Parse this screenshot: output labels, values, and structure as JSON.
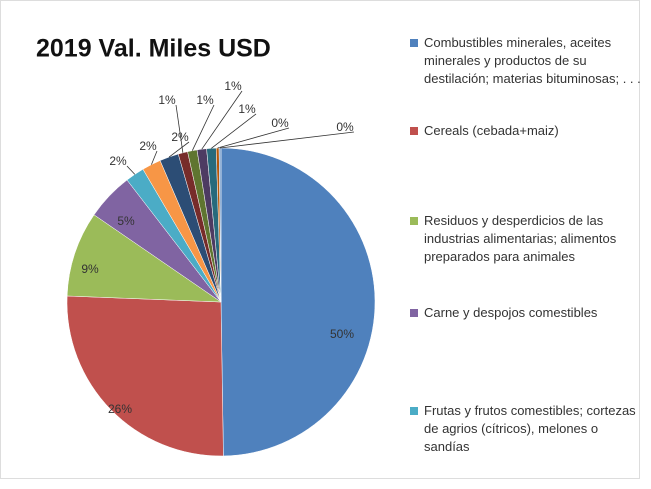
{
  "chart_data": {
    "type": "pie",
    "title": "2019 Val. Miles USD",
    "categories": [
      "Combustibles minerales, aceites minerales y productos de su destilación; materias bituminosas; . . .",
      "Cereals (cebada+maiz)",
      "Residuos y desperdicios de las industrias alimentarias; alimentos preparados para animales",
      "Carne y despojos comestibles",
      "Frutas y frutos comestibles; cortezas de agrios (cítricos), melones o sandías",
      null,
      null,
      null,
      null,
      null,
      null,
      null,
      null
    ],
    "values": [
      50,
      26,
      9,
      5,
      2,
      2,
      2,
      1,
      1,
      1,
      1,
      0.3,
      0.2
    ],
    "value_labels": [
      "50%",
      "26%",
      "9%",
      "5%",
      "2%",
      "2%",
      "2%",
      "1%",
      "1%",
      "1%",
      "1%",
      "0%",
      "0%"
    ],
    "colors": [
      "#4f81bd",
      "#c0504d",
      "#9bbb59",
      "#8064a2",
      "#4bacc6",
      "#f79646",
      "#2c4d75",
      "#772c2a",
      "#5f7530",
      "#4d3b62",
      "#276a7c",
      "#b65708",
      "#729aca"
    ]
  }
}
